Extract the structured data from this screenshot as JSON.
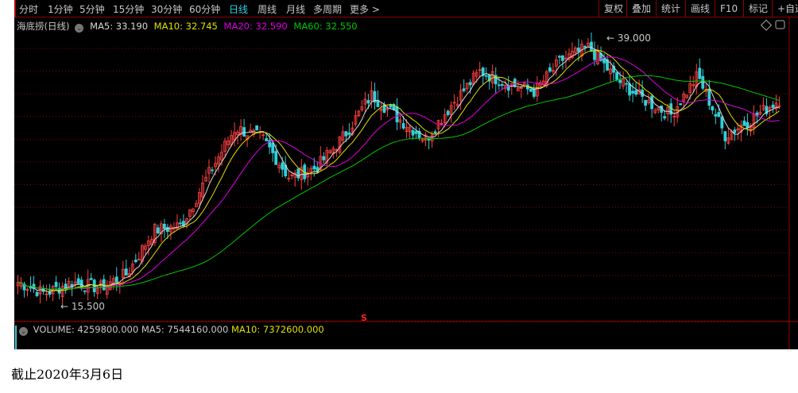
{
  "toolbar": {
    "tabs": [
      "分时",
      "1分钟",
      "5分钟",
      "15分钟",
      "30分钟",
      "60分钟",
      "日线",
      "周线",
      "月线",
      "多周期",
      "更多 >"
    ],
    "active_tab": "日线",
    "right_buttons": [
      "复权",
      "叠加",
      "统计",
      "画线",
      "F10",
      "标记",
      "+自选"
    ]
  },
  "info": {
    "title": "海底捞(日线)",
    "ma5": "MA5: 33.190",
    "ma10": "MA10: 32.745",
    "ma20": "MA20: 32.590",
    "ma60": "MA60: 32.550"
  },
  "colors": {
    "ma5": "#d8d8d8",
    "ma10": "#e0e000",
    "ma20": "#e000e0",
    "ma60": "#00c800",
    "up": "#ff4040",
    "down": "#30d0d8",
    "grid": "#8b0000"
  },
  "chart_data": {
    "type": "candlestick",
    "high_label": "39.000",
    "low_label": "15.500",
    "approx_close_path": [
      17.3,
      16.3,
      17.3,
      16.8,
      18.0,
      21.9,
      22.3,
      26.8,
      31.0,
      30.0,
      26.5,
      27.5,
      30.3,
      33.9,
      31.8,
      30.0,
      33.2,
      36.0,
      34.9,
      34.2,
      37.0,
      38.1,
      35.3,
      33.5,
      32.1,
      35.6,
      30.3,
      31.8,
      33.5
    ]
  },
  "volume": {
    "volume": "VOLUME: 4259800.000",
    "ma5": "MA5: 7544160.000",
    "ma10": "MA10: 7372600.000"
  },
  "marker": "S",
  "footnote": "截止2020年3月6日"
}
